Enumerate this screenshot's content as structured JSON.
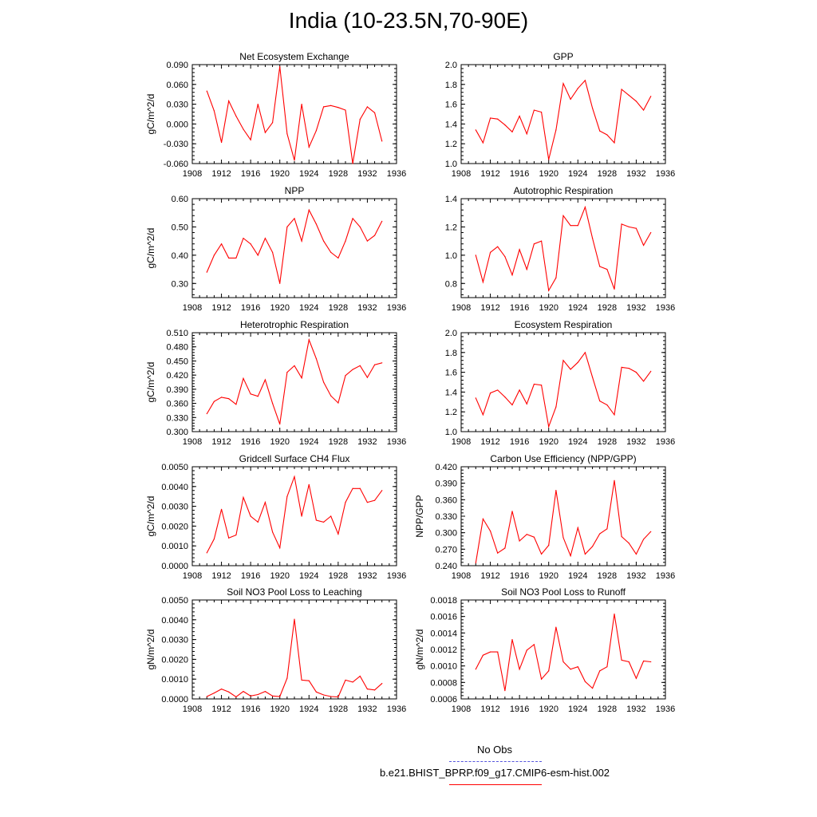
{
  "title": "India (10-23.5N,70-90E)",
  "colors": {
    "model": "#ff0000",
    "obs": "#5555dd",
    "axis": "#000000"
  },
  "legend": {
    "obs_label": "No Obs",
    "model_label": "b.e21.BHIST_BPRP.f09_g17.CMIP6-esm-hist.002"
  },
  "chart_data": [
    {
      "type": "line",
      "title": "Net Ecosystem Exchange",
      "ylabel": "gC/m^2/d",
      "xlim": [
        1908,
        1936
      ],
      "ylim": [
        -0.06,
        0.09
      ],
      "xticks": [
        1908,
        1912,
        1916,
        1920,
        1924,
        1928,
        1932,
        1936
      ],
      "yticks": [
        "-0.060",
        "-0.030",
        "0.000",
        "0.030",
        "0.060",
        "0.090"
      ],
      "x": [
        1910,
        1911,
        1912,
        1913,
        1914,
        1915,
        1916,
        1917,
        1918,
        1919,
        1920,
        1921,
        1922,
        1923,
        1924,
        1925,
        1926,
        1927,
        1928,
        1929,
        1930,
        1931,
        1932,
        1933,
        1934
      ],
      "values": [
        0.05,
        0.02,
        -0.028,
        0.035,
        0.012,
        -0.008,
        -0.024,
        0.03,
        -0.013,
        0.002,
        0.087,
        -0.015,
        -0.055,
        0.03,
        -0.035,
        -0.01,
        0.026,
        0.028,
        0.025,
        0.021,
        -0.06,
        0.007,
        0.026,
        0.017,
        -0.026
      ]
    },
    {
      "type": "line",
      "title": "GPP",
      "ylabel": "",
      "xlim": [
        1908,
        1936
      ],
      "ylim": [
        1.0,
        2.0
      ],
      "xticks": [
        1908,
        1912,
        1916,
        1920,
        1924,
        1928,
        1932,
        1936
      ],
      "yticks": [
        "1.0",
        "1.2",
        "1.4",
        "1.6",
        "1.8",
        "2.0"
      ],
      "x": [
        1910,
        1911,
        1912,
        1913,
        1914,
        1915,
        1916,
        1917,
        1918,
        1919,
        1920,
        1921,
        1922,
        1923,
        1924,
        1925,
        1926,
        1927,
        1928,
        1929,
        1930,
        1931,
        1932,
        1933,
        1934
      ],
      "values": [
        1.34,
        1.21,
        1.46,
        1.45,
        1.39,
        1.32,
        1.48,
        1.3,
        1.54,
        1.52,
        1.04,
        1.34,
        1.81,
        1.65,
        1.76,
        1.84,
        1.56,
        1.33,
        1.29,
        1.21,
        1.75,
        1.69,
        1.63,
        1.54,
        1.68
      ]
    },
    {
      "type": "line",
      "title": "NPP",
      "ylabel": "gC/m^2/d",
      "xlim": [
        1908,
        1936
      ],
      "ylim": [
        0.25,
        0.6
      ],
      "xticks": [
        1908,
        1912,
        1916,
        1920,
        1924,
        1928,
        1932,
        1936
      ],
      "yticks": [
        "0.30",
        "0.40",
        "0.50",
        "0.60"
      ],
      "yticks_values": [
        0.3,
        0.4,
        0.5,
        0.6
      ],
      "x": [
        1910,
        1911,
        1912,
        1913,
        1914,
        1915,
        1916,
        1917,
        1918,
        1919,
        1920,
        1921,
        1922,
        1923,
        1924,
        1925,
        1926,
        1927,
        1928,
        1929,
        1930,
        1931,
        1932,
        1933,
        1934
      ],
      "values": [
        0.34,
        0.4,
        0.44,
        0.39,
        0.39,
        0.46,
        0.44,
        0.4,
        0.46,
        0.41,
        0.3,
        0.5,
        0.53,
        0.45,
        0.56,
        0.51,
        0.45,
        0.41,
        0.39,
        0.45,
        0.53,
        0.5,
        0.45,
        0.47,
        0.52
      ]
    },
    {
      "type": "line",
      "title": "Autotrophic Respiration",
      "ylabel": "",
      "xlim": [
        1908,
        1936
      ],
      "ylim": [
        0.7,
        1.4
      ],
      "xticks": [
        1908,
        1912,
        1916,
        1920,
        1924,
        1928,
        1932,
        1936
      ],
      "yticks": [
        "0.8",
        "1.0",
        "1.2",
        "1.4"
      ],
      "yticks_values": [
        0.8,
        1.0,
        1.2,
        1.4
      ],
      "x": [
        1910,
        1911,
        1912,
        1913,
        1914,
        1915,
        1916,
        1917,
        1918,
        1919,
        1920,
        1921,
        1922,
        1923,
        1924,
        1925,
        1926,
        1927,
        1928,
        1929,
        1930,
        1931,
        1932,
        1933,
        1934
      ],
      "values": [
        1.0,
        0.81,
        1.02,
        1.06,
        0.99,
        0.86,
        1.04,
        0.9,
        1.08,
        1.1,
        0.75,
        0.84,
        1.28,
        1.21,
        1.21,
        1.34,
        1.12,
        0.92,
        0.9,
        0.76,
        1.22,
        1.2,
        1.19,
        1.07,
        1.16
      ]
    },
    {
      "type": "line",
      "title": "Heterotrophic Respiration",
      "ylabel": "gC/m^2/d",
      "xlim": [
        1908,
        1936
      ],
      "ylim": [
        0.3,
        0.51
      ],
      "xticks": [
        1908,
        1912,
        1916,
        1920,
        1924,
        1928,
        1932,
        1936
      ],
      "yticks": [
        "0.300",
        "0.330",
        "0.360",
        "0.390",
        "0.420",
        "0.450",
        "0.480",
        "0.510"
      ],
      "yticks_values": [
        0.3,
        0.33,
        0.36,
        0.39,
        0.42,
        0.45,
        0.48,
        0.51
      ],
      "x": [
        1910,
        1911,
        1912,
        1913,
        1914,
        1915,
        1916,
        1917,
        1918,
        1919,
        1920,
        1921,
        1922,
        1923,
        1924,
        1925,
        1926,
        1927,
        1928,
        1929,
        1930,
        1931,
        1932,
        1933,
        1934
      ],
      "values": [
        0.338,
        0.364,
        0.373,
        0.37,
        0.358,
        0.413,
        0.38,
        0.375,
        0.41,
        0.36,
        0.316,
        0.426,
        0.44,
        0.414,
        0.495,
        0.455,
        0.405,
        0.376,
        0.361,
        0.419,
        0.432,
        0.44,
        0.415,
        0.442,
        0.446
      ]
    },
    {
      "type": "line",
      "title": "Ecosystem Respiration",
      "ylabel": "",
      "xlim": [
        1908,
        1936
      ],
      "ylim": [
        1.0,
        2.0
      ],
      "xticks": [
        1908,
        1912,
        1916,
        1920,
        1924,
        1928,
        1932,
        1936
      ],
      "yticks": [
        "1.0",
        "1.2",
        "1.4",
        "1.6",
        "1.8",
        "2.0"
      ],
      "x": [
        1910,
        1911,
        1912,
        1913,
        1914,
        1915,
        1916,
        1917,
        1918,
        1919,
        1920,
        1921,
        1922,
        1923,
        1924,
        1925,
        1926,
        1927,
        1928,
        1929,
        1930,
        1931,
        1932,
        1933,
        1934
      ],
      "values": [
        1.34,
        1.17,
        1.39,
        1.42,
        1.35,
        1.27,
        1.42,
        1.28,
        1.48,
        1.47,
        1.05,
        1.25,
        1.72,
        1.63,
        1.7,
        1.8,
        1.55,
        1.31,
        1.27,
        1.17,
        1.65,
        1.64,
        1.6,
        1.51,
        1.61
      ]
    },
    {
      "type": "line",
      "title": "Gridcell Surface CH4 Flux",
      "ylabel": "gC/m^2/d",
      "xlim": [
        1908,
        1936
      ],
      "ylim": [
        0.0,
        0.005
      ],
      "xticks": [
        1908,
        1912,
        1916,
        1920,
        1924,
        1928,
        1932,
        1936
      ],
      "yticks": [
        "0.0000",
        "0.0010",
        "0.0020",
        "0.0030",
        "0.0040",
        "0.0050"
      ],
      "x": [
        1910,
        1911,
        1912,
        1913,
        1914,
        1915,
        1916,
        1917,
        1918,
        1919,
        1920,
        1921,
        1922,
        1923,
        1924,
        1925,
        1926,
        1927,
        1928,
        1929,
        1930,
        1931,
        1932,
        1933,
        1934
      ],
      "values": [
        0.00065,
        0.00135,
        0.00285,
        0.0014,
        0.00155,
        0.00345,
        0.0025,
        0.0022,
        0.0032,
        0.0017,
        0.0009,
        0.0035,
        0.0045,
        0.0025,
        0.0041,
        0.0023,
        0.0022,
        0.0025,
        0.0016,
        0.0032,
        0.0039,
        0.0039,
        0.0032,
        0.0033,
        0.0038
      ]
    },
    {
      "type": "line",
      "title": "Carbon Use Efficiency (NPP/GPP)",
      "ylabel": "NPP/GPP",
      "xlim": [
        1908,
        1936
      ],
      "ylim": [
        0.24,
        0.42
      ],
      "xticks": [
        1908,
        1912,
        1916,
        1920,
        1924,
        1928,
        1932,
        1936
      ],
      "yticks": [
        "0.240",
        "0.270",
        "0.300",
        "0.330",
        "0.360",
        "0.390",
        "0.420"
      ],
      "x": [
        1910,
        1911,
        1912,
        1913,
        1914,
        1915,
        1916,
        1917,
        1918,
        1919,
        1920,
        1921,
        1922,
        1923,
        1924,
        1925,
        1926,
        1927,
        1928,
        1929,
        1930,
        1931,
        1932,
        1933,
        1934
      ],
      "values": [
        0.245,
        0.325,
        0.303,
        0.263,
        0.272,
        0.339,
        0.285,
        0.297,
        0.292,
        0.261,
        0.277,
        0.377,
        0.291,
        0.258,
        0.309,
        0.261,
        0.275,
        0.298,
        0.307,
        0.395,
        0.293,
        0.281,
        0.261,
        0.288,
        0.302
      ]
    },
    {
      "type": "line",
      "title": "Soil NO3 Pool Loss to Leaching",
      "ylabel": "gN/m^2/d",
      "xlim": [
        1908,
        1936
      ],
      "ylim": [
        0.0,
        0.005
      ],
      "xticks": [
        1908,
        1912,
        1916,
        1920,
        1924,
        1928,
        1932,
        1936
      ],
      "yticks": [
        "0.0000",
        "0.0010",
        "0.0020",
        "0.0030",
        "0.0040",
        "0.0050"
      ],
      "x": [
        1910,
        1911,
        1912,
        1913,
        1914,
        1915,
        1916,
        1917,
        1918,
        1919,
        1920,
        1921,
        1922,
        1923,
        1924,
        1925,
        1926,
        1927,
        1928,
        1929,
        1930,
        1931,
        1932,
        1933,
        1934
      ],
      "values": [
        0.00012,
        0.0003,
        0.0005,
        0.00035,
        0.0001,
        0.00038,
        0.00015,
        0.00022,
        0.00038,
        0.00015,
        0.00012,
        0.00105,
        0.00403,
        0.00095,
        0.00092,
        0.00035,
        0.0002,
        0.00012,
        0.0001,
        0.00095,
        0.00085,
        0.00115,
        0.0005,
        0.00045,
        0.00078
      ]
    },
    {
      "type": "line",
      "title": "Soil NO3 Pool Loss to Runoff",
      "ylabel": "gN/m^2/d",
      "xlim": [
        1908,
        1936
      ],
      "ylim": [
        0.0006,
        0.0018
      ],
      "xticks": [
        1908,
        1912,
        1916,
        1920,
        1924,
        1928,
        1932,
        1936
      ],
      "yticks": [
        "0.0006",
        "0.0008",
        "0.0010",
        "0.0012",
        "0.0014",
        "0.0016",
        "0.0018"
      ],
      "x": [
        1910,
        1911,
        1912,
        1913,
        1914,
        1915,
        1916,
        1917,
        1918,
        1919,
        1920,
        1921,
        1922,
        1923,
        1924,
        1925,
        1926,
        1927,
        1928,
        1929,
        1930,
        1931,
        1932,
        1933,
        1934
      ],
      "values": [
        0.00096,
        0.00113,
        0.00117,
        0.00117,
        0.0007,
        0.00132,
        0.00096,
        0.00119,
        0.00126,
        0.00084,
        0.00094,
        0.00147,
        0.00105,
        0.00096,
        0.00099,
        0.00081,
        0.00073,
        0.00094,
        0.00099,
        0.00163,
        0.00107,
        0.00105,
        0.00085,
        0.00106,
        0.00105
      ]
    }
  ]
}
